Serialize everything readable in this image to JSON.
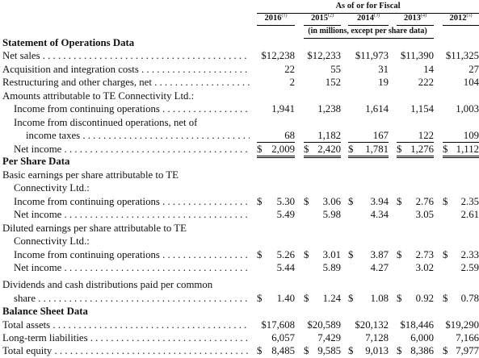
{
  "header": {
    "top": "As of or for Fiscal",
    "units": "(in millions, except per share data)",
    "years": [
      {
        "year": "2016",
        "note": "(1)"
      },
      {
        "year": "2015",
        "note": "(2)"
      },
      {
        "year": "2014",
        "note": "(3)"
      },
      {
        "year": "2013",
        "note": "(4)"
      },
      {
        "year": "2012",
        "note": "(5)"
      }
    ]
  },
  "sections": {
    "ops": "Statement of Operations Data",
    "pershare": "Per Share Data",
    "balance": "Balance Sheet Data"
  },
  "rows": {
    "net_sales": {
      "label": "Net sales",
      "values": [
        "$12,238",
        "$12,233",
        "$11,973",
        "$11,390",
        "$11,325"
      ]
    },
    "acq": {
      "label": "Acquisition and integration costs",
      "values": [
        "22",
        "55",
        "31",
        "14",
        "27"
      ]
    },
    "restr": {
      "label": "Restructuring and other charges, net",
      "values": [
        "2",
        "152",
        "19",
        "222",
        "104"
      ]
    },
    "amounts_hdr": {
      "label": "Amounts attributable to TE Connectivity Ltd.:"
    },
    "inc_cont": {
      "label": "Income from continuing operations",
      "values": [
        "1,941",
        "1,238",
        "1,614",
        "1,154",
        "1,003"
      ]
    },
    "inc_disc_1": {
      "label": "Income from discontinued operations, net of"
    },
    "inc_disc_2": {
      "label": "income taxes",
      "values": [
        "68",
        "1,182",
        "167",
        "122",
        "109"
      ]
    },
    "net_income": {
      "label": "Net income",
      "values": [
        "$",
        "2,009",
        "$",
        "2,420",
        "$",
        "1,781",
        "$",
        "1,276",
        "$",
        "1,112"
      ]
    },
    "basic_hdr_1": {
      "label": "Basic earnings per share attributable to TE"
    },
    "basic_hdr_2": {
      "label": "Connectivity Ltd.:"
    },
    "basic_cont": {
      "label": "Income from continuing operations",
      "values": [
        "$",
        "5.30",
        "$",
        "3.06",
        "$",
        "3.94",
        "$",
        "2.76",
        "$",
        "2.35"
      ]
    },
    "basic_net": {
      "label": "Net income",
      "values": [
        "5.49",
        "5.98",
        "4.34",
        "3.05",
        "2.61"
      ]
    },
    "diluted_hdr_1": {
      "label": "Diluted earnings per share attributable to TE"
    },
    "diluted_hdr_2": {
      "label": "Connectivity Ltd.:"
    },
    "diluted_cont": {
      "label": "Income from continuing operations",
      "values": [
        "$",
        "5.26",
        "$",
        "3.01",
        "$",
        "3.87",
        "$",
        "2.73",
        "$",
        "2.33"
      ]
    },
    "diluted_net": {
      "label": "Net income",
      "values": [
        "5.44",
        "5.89",
        "4.27",
        "3.02",
        "2.59"
      ]
    },
    "div_1": {
      "label": "Dividends and cash distributions paid per common"
    },
    "div_2": {
      "label": "share",
      "values": [
        "$",
        "1.40",
        "$",
        "1.24",
        "$",
        "1.08",
        "$",
        "0.92",
        "$",
        "0.78"
      ]
    },
    "total_assets": {
      "label": "Total assets",
      "values": [
        "$17,608",
        "$20,589",
        "$20,132",
        "$18,446",
        "$19,290"
      ]
    },
    "lt_liab": {
      "label": "Long-term liabilities",
      "values": [
        "6,057",
        "7,429",
        "7,128",
        "6,000",
        "7,166"
      ]
    },
    "total_equity": {
      "label": "Total equity",
      "values": [
        "$",
        "8,485",
        "$",
        "9,585",
        "$",
        "9,013",
        "$",
        "8,386",
        "$",
        "7,977"
      ]
    }
  }
}
